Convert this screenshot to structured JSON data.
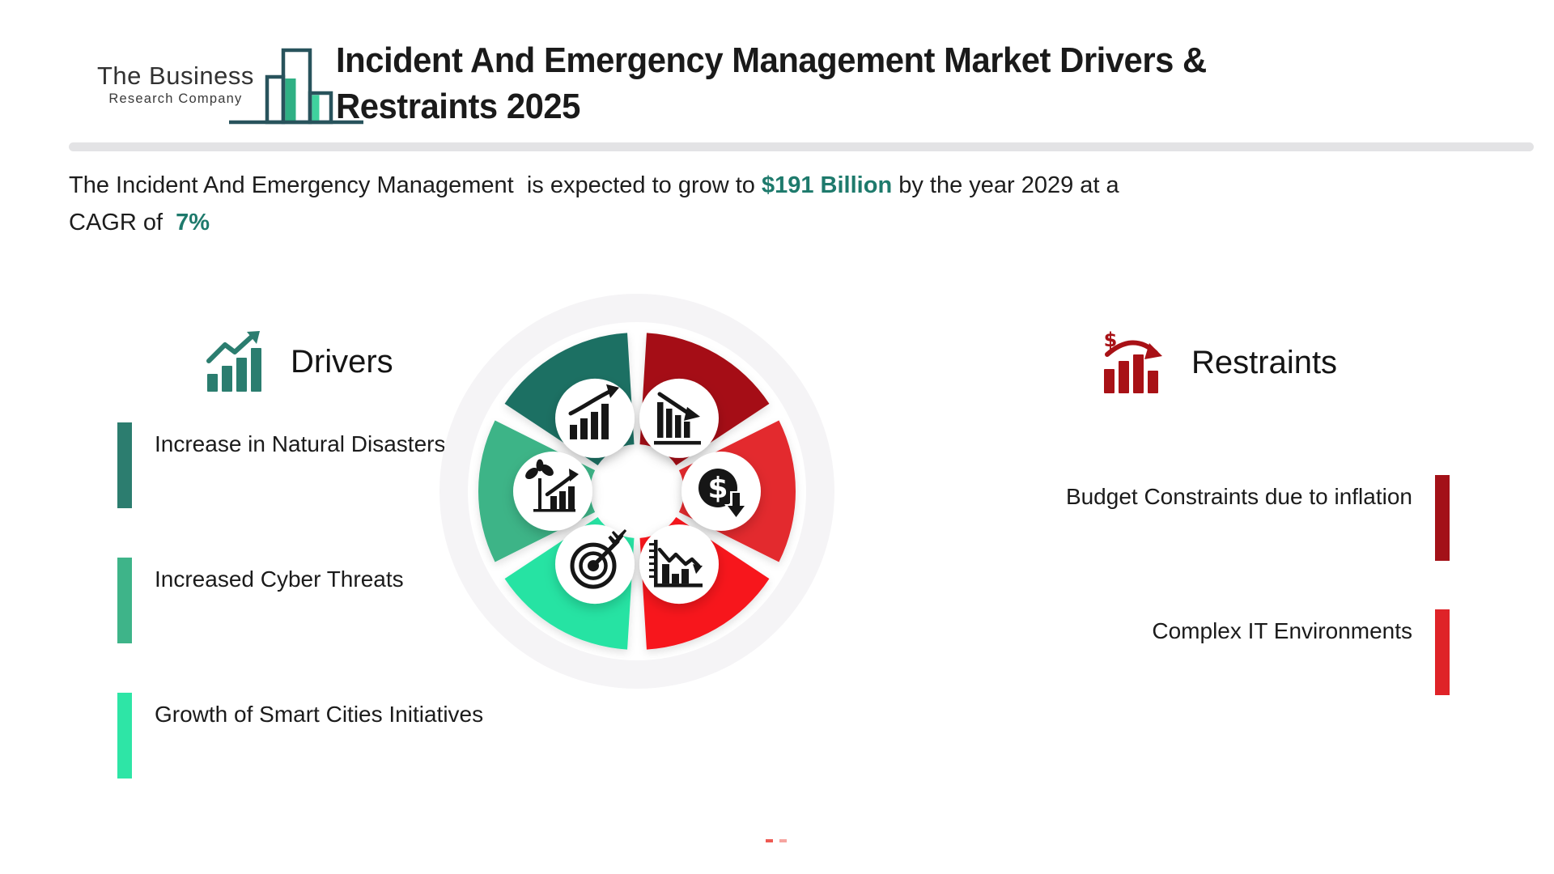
{
  "header": {
    "logo_line1": "The Business",
    "logo_line2": "Research Company",
    "title_line1": "Incident And Emergency Management Market Drivers &",
    "title_line2": "Restraints 2025"
  },
  "summary": {
    "text_before": "The Incident And Emergency Management  is expected to grow to ",
    "value": "$191 Billion",
    "text_after_value": " by the year 2029 at a",
    "text_line2": "CAGR of  ",
    "rate": "7%",
    "accent_color": "#1E7A6C"
  },
  "drivers": {
    "label": "Drivers",
    "icon_color": "#2B7D6F",
    "items": [
      {
        "label": "Increase in Natural Disasters",
        "bar_color": "#2C7D6F"
      },
      {
        "label": "Increased Cyber Threats",
        "bar_color": "#3EB489"
      },
      {
        "label": "Growth of Smart Cities Initiatives",
        "bar_color": "#2EE5A6"
      }
    ]
  },
  "restraints": {
    "label": "Restraints",
    "icon_color": "#A81116",
    "items": [
      {
        "label": "Budget Constraints due to inflation",
        "bar_color": "#A31118"
      },
      {
        "label": "Complex IT Environments",
        "bar_color": "#DF2328"
      }
    ]
  },
  "wheel": {
    "ring_color": "#F5F4F6",
    "segments": [
      {
        "name": "growth-trend",
        "icon": "growth-bars-icon",
        "color": "#1E6F63",
        "angle": 120
      },
      {
        "name": "sustainable-growth",
        "icon": "plant-growth-icon",
        "color": "#3CB487",
        "angle": 180
      },
      {
        "name": "target-goals",
        "icon": "target-dart-icon",
        "color": "#25E3A3",
        "angle": 240
      },
      {
        "name": "declining-bars",
        "icon": "decline-bars-icon",
        "color": "#A50D12",
        "angle": 60
      },
      {
        "name": "cost-decline",
        "icon": "dollar-down-icon",
        "color": "#E32A2E",
        "angle": 0
      },
      {
        "name": "declining-chart",
        "icon": "decline-graph-icon",
        "color": "#F7121B",
        "angle": 300
      }
    ]
  }
}
